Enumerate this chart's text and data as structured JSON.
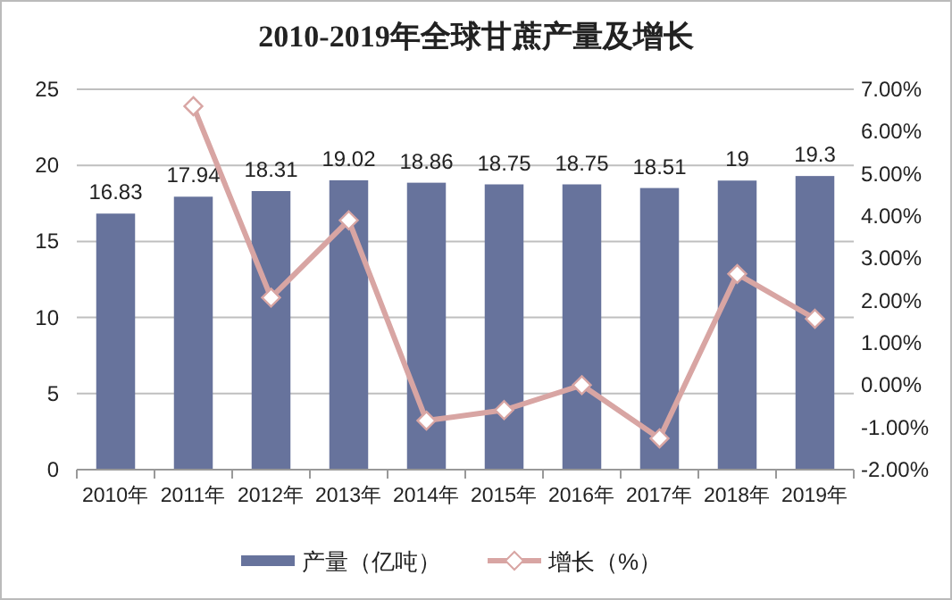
{
  "chart_data": {
    "type": "bar",
    "title": "2010-2019年全球甘蔗产量及增长",
    "categories": [
      "2010年",
      "2011年",
      "2012年",
      "2013年",
      "2014年",
      "2015年",
      "2016年",
      "2017年",
      "2018年",
      "2019年"
    ],
    "series": [
      {
        "name": "产量（亿吨）",
        "color": "#67739c",
        "values": [
          16.83,
          17.94,
          18.31,
          19.02,
          18.86,
          18.75,
          18.75,
          18.51,
          19,
          19.3
        ],
        "value_labels": [
          "16.83",
          "17.94",
          "18.31",
          "19.02",
          "18.86",
          "18.75",
          "18.75",
          "18.51",
          "19",
          "19.3"
        ]
      },
      {
        "name": "增长（%）",
        "type": "line",
        "axis": "y2",
        "color": "#d8a5a3",
        "marker": "diamond",
        "values": [
          null,
          6.6,
          2.07,
          3.9,
          -0.84,
          -0.59,
          0.0,
          -1.26,
          2.63,
          1.57
        ]
      }
    ],
    "ylim": [
      0,
      25
    ],
    "yticks": [
      0,
      5,
      10,
      15,
      20,
      25
    ],
    "y2lim": [
      -2,
      7
    ],
    "y2ticks": [
      {
        "value": -2,
        "label": "-2.00%"
      },
      {
        "value": -1,
        "label": "-1.00%"
      },
      {
        "value": 0,
        "label": "0.00%"
      },
      {
        "value": 1,
        "label": "1.00%"
      },
      {
        "value": 2,
        "label": "2.00%"
      },
      {
        "value": 3,
        "label": "3.00%"
      },
      {
        "value": 4,
        "label": "4.00%"
      },
      {
        "value": 5,
        "label": "5.00%"
      },
      {
        "value": 6,
        "label": "6.00%"
      },
      {
        "value": 7,
        "label": "7.00%"
      }
    ],
    "grid": "y",
    "legend": "bottom"
  }
}
